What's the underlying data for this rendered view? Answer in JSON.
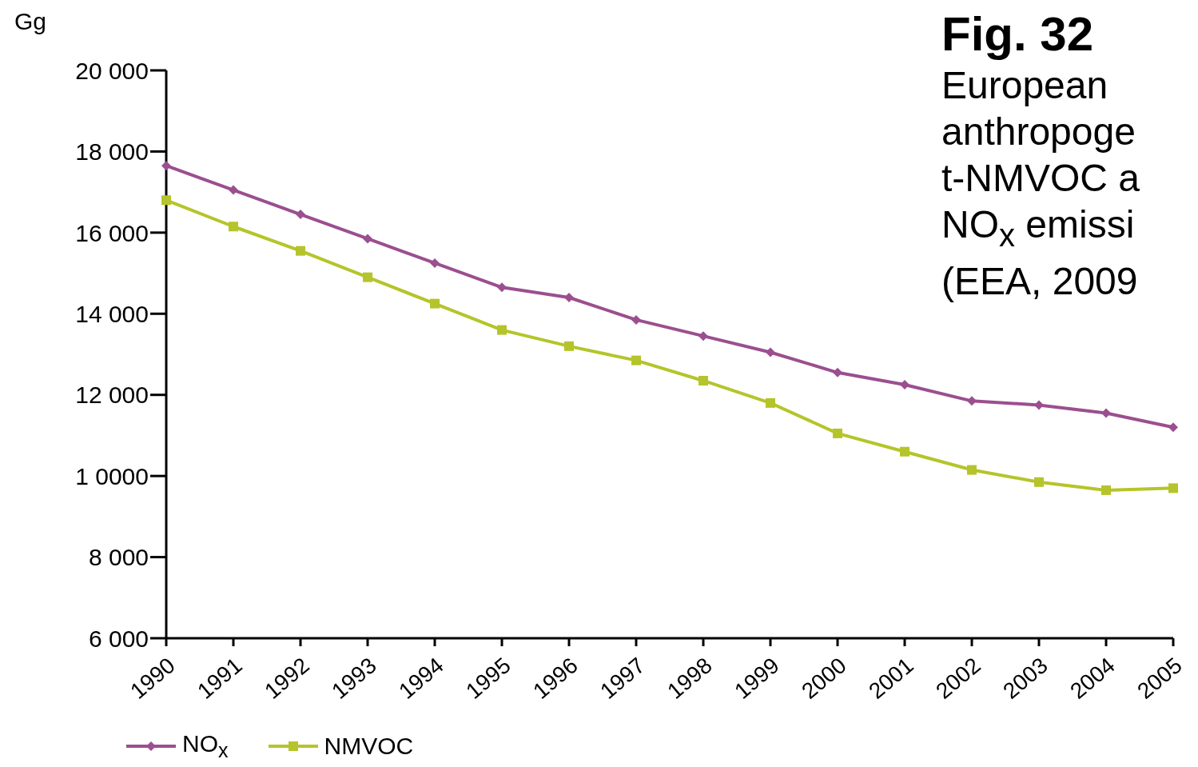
{
  "chart_data": {
    "type": "line",
    "title": "Fig. 32",
    "subtitle": "European\nanthropoge\nt-NMVOC a\nNO$_{x}$ emissi\n(EEA, 2009",
    "ylabel": "Gg",
    "categories": [
      "1990",
      "1991",
      "1992",
      "1993",
      "1994",
      "1995",
      "1996",
      "1997",
      "1998",
      "1999",
      "2000",
      "2001",
      "2002",
      "2003",
      "2004",
      "2005"
    ],
    "series": [
      {
        "name": "NO$_{x}$",
        "color": "#9b4f8f",
        "marker": "diamond",
        "values": [
          17650,
          17050,
          16450,
          15850,
          15250,
          14650,
          14400,
          13850,
          13450,
          13050,
          12550,
          12250,
          11850,
          11750,
          11550,
          11200
        ]
      },
      {
        "name": "NMVOC",
        "color": "#b5c42a",
        "marker": "square",
        "values": [
          16800,
          16150,
          15550,
          14900,
          14250,
          13600,
          13200,
          12850,
          12350,
          11800,
          11050,
          10600,
          10150,
          9850,
          9650,
          9700
        ]
      }
    ],
    "ylim": [
      6000,
      20000
    ],
    "yticks": [
      {
        "value": 6000,
        "label": "6 000"
      },
      {
        "value": 8000,
        "label": "8 000"
      },
      {
        "value": 10000,
        "label": "1 0000"
      },
      {
        "value": 12000,
        "label": "12 000"
      },
      {
        "value": 14000,
        "label": "14 000"
      },
      {
        "value": 16000,
        "label": "16 000"
      },
      {
        "value": 18000,
        "label": "18 000"
      },
      {
        "value": 20000,
        "label": "20 000"
      }
    ],
    "grid": false,
    "legend": "bottom left",
    "line_style": "solid"
  }
}
